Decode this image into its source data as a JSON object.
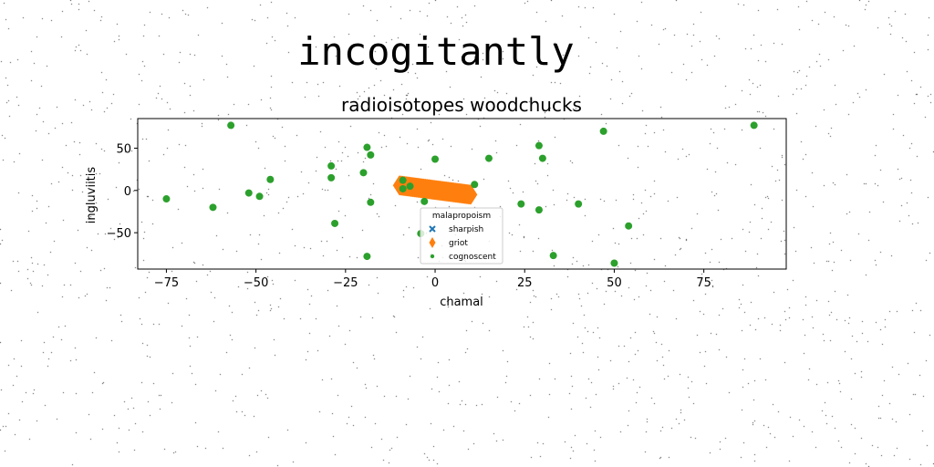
{
  "page": {
    "suptitle": "incogitantly"
  },
  "chart_data": {
    "type": "scatter",
    "title": "radioisotopes woodchucks",
    "xlabel": "chamal",
    "ylabel": "ingluviitis",
    "xlim": [
      -83,
      98
    ],
    "ylim": [
      -93,
      85
    ],
    "xticks": [
      -75,
      -50,
      -25,
      0,
      25,
      50,
      75
    ],
    "xtick_labels": [
      "−75",
      "−50",
      "−25",
      "0",
      "25",
      "50",
      "75"
    ],
    "yticks": [
      -50,
      0,
      50
    ],
    "ytick_labels": [
      "−50",
      "0",
      "50"
    ],
    "grid": false,
    "legend": {
      "title": "malapropoism",
      "placement": "bottom-center"
    },
    "series": [
      {
        "name": "sharpish",
        "marker": "x",
        "color": "#1f77b4",
        "points": []
      },
      {
        "name": "griot",
        "marker": "diamond",
        "color": "#ff7f0e",
        "segment": {
          "x0": -10,
          "y0": 6,
          "x1": 10,
          "y1": -5,
          "count": 120
        }
      },
      {
        "name": "cognoscent",
        "marker": "circle",
        "color": "#2ca02c",
        "points": [
          [
            -57,
            77
          ],
          [
            89,
            77
          ],
          [
            47,
            70
          ],
          [
            -19,
            51
          ],
          [
            29,
            53
          ],
          [
            -18,
            42
          ],
          [
            0,
            37
          ],
          [
            15,
            38
          ],
          [
            30,
            38
          ],
          [
            -29,
            29
          ],
          [
            -20,
            21
          ],
          [
            -29,
            15
          ],
          [
            -46,
            13
          ],
          [
            -9,
            12
          ],
          [
            -7,
            5
          ],
          [
            11,
            7
          ],
          [
            -9,
            2
          ],
          [
            -52,
            -3
          ],
          [
            -49,
            -7
          ],
          [
            -75,
            -10
          ],
          [
            -18,
            -14
          ],
          [
            -3,
            -13
          ],
          [
            24,
            -16
          ],
          [
            40,
            -16
          ],
          [
            29,
            -23
          ],
          [
            -62,
            -20
          ],
          [
            -28,
            -39
          ],
          [
            54,
            -42
          ],
          [
            -4,
            -51
          ],
          [
            -19,
            -78
          ],
          [
            33,
            -77
          ],
          [
            50,
            -86
          ]
        ]
      }
    ]
  }
}
